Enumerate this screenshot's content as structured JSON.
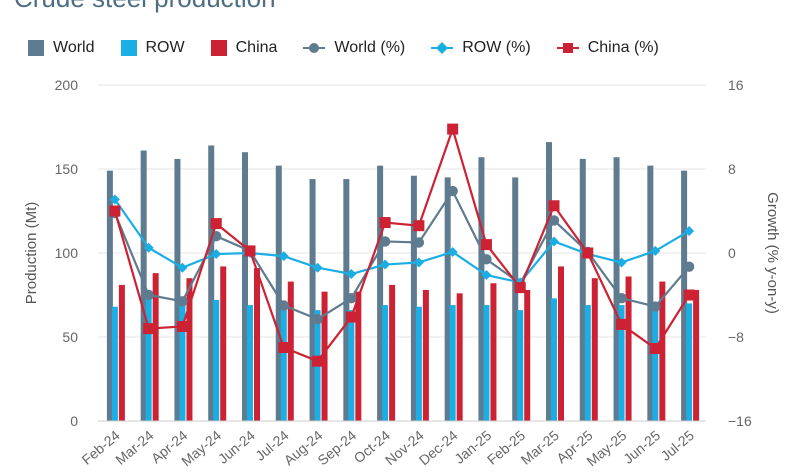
{
  "title": "Crude steel production",
  "legend": {
    "world": "World",
    "row": "ROW",
    "china": "China",
    "world_pct": "World (%)",
    "row_pct": "ROW (%)",
    "china_pct": "China (%)"
  },
  "colors": {
    "world": "#5e7b8f",
    "row": "#1aaee5",
    "china": "#cc2233"
  },
  "chart_data": {
    "type": "bar",
    "categories": [
      "Feb-24",
      "Mar-24",
      "Apr-24",
      "May-24",
      "Jun-24",
      "Jul-24",
      "Aug-24",
      "Sep-24",
      "Oct-24",
      "Nov-24",
      "Dec-24",
      "Jan-25",
      "Feb-25",
      "Mar-25",
      "Apr-25",
      "May-25",
      "Jun-25",
      "Jul-25"
    ],
    "series": [
      {
        "name": "World",
        "kind": "bar",
        "axis": "left",
        "values": [
          149,
          161,
          156,
          164,
          160,
          152,
          144,
          144,
          152,
          146,
          145,
          157,
          145,
          166,
          156,
          157,
          152,
          149
        ]
      },
      {
        "name": "ROW",
        "kind": "bar",
        "axis": "left",
        "values": [
          68,
          77,
          72,
          72,
          69,
          68,
          66,
          66,
          69,
          68,
          69,
          69,
          66,
          73,
          69,
          69,
          70,
          70
        ]
      },
      {
        "name": "China",
        "kind": "bar",
        "axis": "left",
        "values": [
          81,
          88,
          85,
          92,
          91,
          83,
          77,
          77,
          81,
          78,
          76,
          82,
          78,
          92,
          85,
          86,
          83,
          78
        ]
      },
      {
        "name": "World (%)",
        "kind": "line",
        "axis": "right",
        "marker": "circle",
        "values": [
          3.8,
          -4.0,
          -4.6,
          1.6,
          0.2,
          -5.0,
          -6.3,
          -4.3,
          1.1,
          1.0,
          5.9,
          -0.6,
          -2.9,
          3.1,
          0.1,
          -4.3,
          -5.1,
          -1.3
        ]
      },
      {
        "name": "ROW (%)",
        "kind": "line",
        "axis": "right",
        "marker": "diamond",
        "values": [
          5.1,
          0.5,
          -1.4,
          -0.1,
          0.0,
          -0.3,
          -1.4,
          -2.0,
          -1.1,
          -0.9,
          0.1,
          -2.1,
          -2.8,
          1.1,
          -0.1,
          -0.9,
          0.2,
          2.1
        ]
      },
      {
        "name": "China (%)",
        "kind": "line",
        "axis": "right",
        "marker": "square",
        "values": [
          4.0,
          -7.2,
          -7.0,
          2.8,
          0.2,
          -9.0,
          -10.3,
          -6.1,
          2.9,
          2.6,
          11.8,
          0.8,
          -3.3,
          4.5,
          0.0,
          -6.8,
          -9.1,
          -4.0
        ]
      }
    ],
    "ylabel": "Production (Mt)",
    "ylabel_right": "Growth (% y-on-y)",
    "ylim": [
      0,
      200
    ],
    "yticks": [
      "0",
      "50",
      "100",
      "150",
      "200"
    ],
    "ylim_right": [
      -16,
      16
    ],
    "yticks_right": [
      "−16",
      "−8",
      "0",
      "8",
      "16"
    ],
    "grid": true,
    "legend_position": "top-left"
  }
}
